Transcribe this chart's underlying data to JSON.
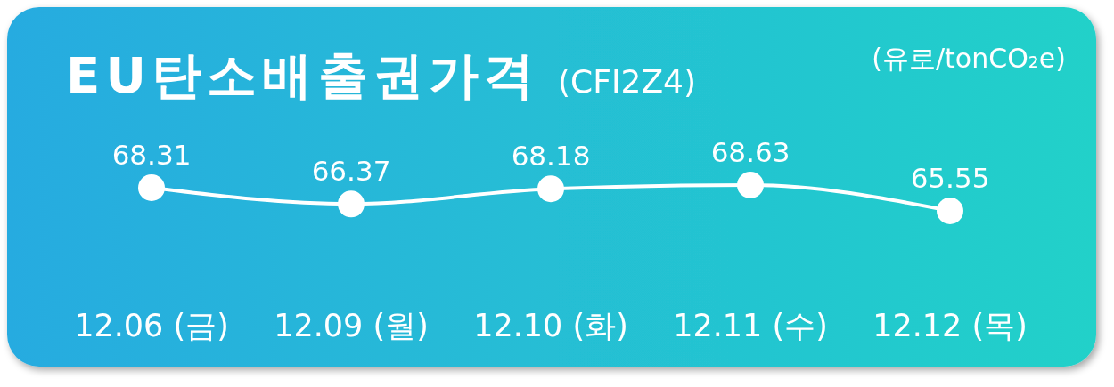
{
  "chart_data": {
    "type": "line",
    "title": "EU탄소배출권가격",
    "subtitle": "(CFI2Z4)",
    "ylabel": "(유로/tonCO₂e)",
    "categories": [
      "12.06 (금)",
      "12.09 (월)",
      "12.10 (화)",
      "12.11 (수)",
      "12.12 (목)"
    ],
    "series": [
      {
        "color": "#ffffff",
        "values": [
          68.31,
          66.37,
          68.18,
          68.63,
          65.55
        ]
      }
    ],
    "data_labels": true,
    "marker": "circle",
    "line_style": "solid"
  }
}
